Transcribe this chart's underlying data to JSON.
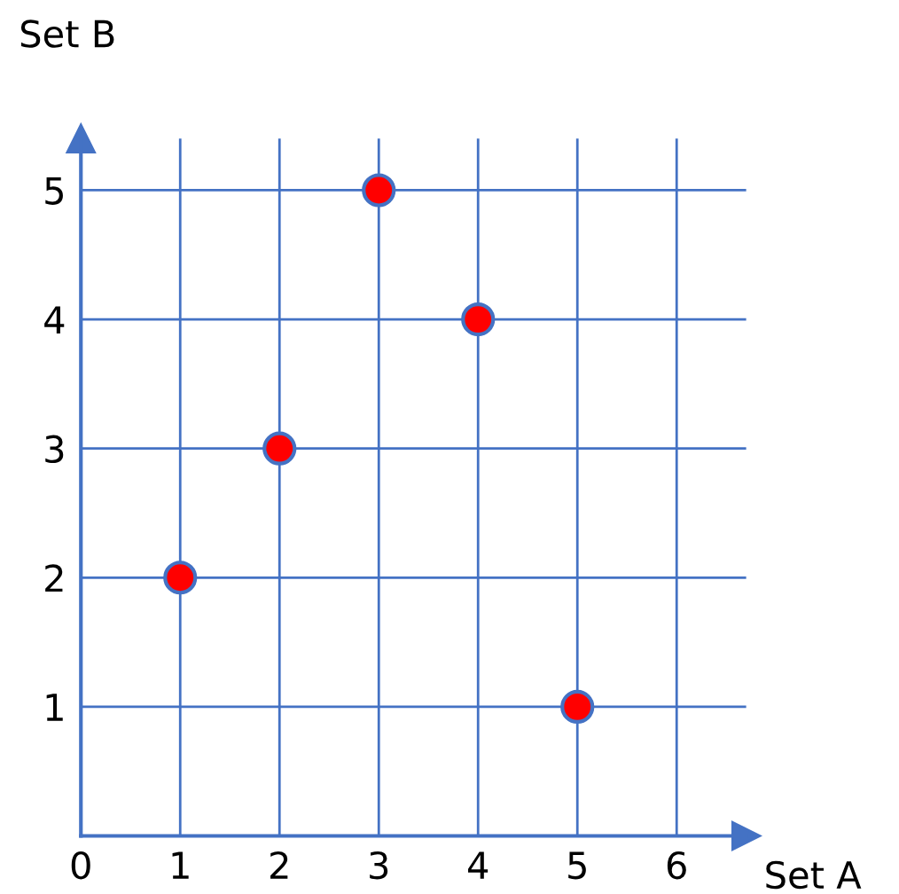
{
  "chart_data": {
    "type": "scatter",
    "xlabel": "Set A",
    "ylabel": "Set B",
    "x": [
      1,
      2,
      3,
      4,
      5
    ],
    "values": [
      2,
      3,
      5,
      4,
      1
    ],
    "color": "#ff0000",
    "marker": "circle",
    "xlim": [
      0,
      6.7
    ],
    "ylim": [
      0,
      5.4
    ],
    "xticks": [
      0,
      1,
      2,
      3,
      4,
      5,
      6
    ],
    "yticks": [
      {
        "value": 0,
        "label": null
      },
      1,
      2,
      3,
      4,
      5
    ],
    "grid": true
  }
}
